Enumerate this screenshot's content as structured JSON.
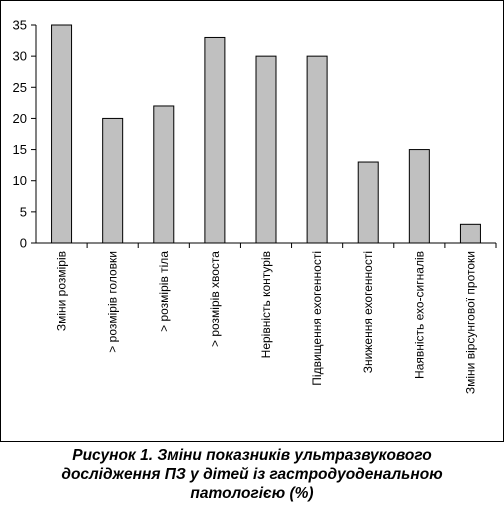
{
  "chart_data": {
    "type": "bar",
    "categories": [
      "Зміни розмірів",
      "> розмірів головки",
      "> розмірів тіла",
      "> розмірів хвоста",
      "Нерівність контурів",
      "Підвищення ехогенності",
      "Зниження ехогенності",
      "Наявність ехо-сигналів",
      "Зміни вірсунгової протоки"
    ],
    "values": [
      35,
      20,
      22,
      33,
      30,
      30,
      13,
      15,
      3
    ],
    "yticks": [
      "0",
      "5",
      "10",
      "15",
      "20",
      "25",
      "30",
      "35"
    ],
    "ylim": [
      0,
      35
    ],
    "grid": false,
    "bar_color": "#c0c0c0",
    "title": "",
    "xlabel": "",
    "ylabel": ""
  },
  "caption": {
    "line1": "Рисунок 1. Зміни показників ультразвукового",
    "line2": "дослідження ПЗ у дітей із гастродуоденальною",
    "line3": "патологією (%)"
  }
}
